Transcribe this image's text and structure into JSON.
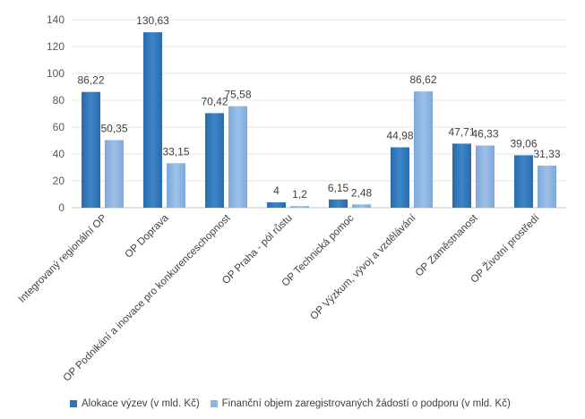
{
  "chart_data": {
    "type": "bar",
    "categories": [
      "Integrovaný regionální OP",
      "OP Doprava",
      "OP Podnikání a inovace pro konkurenceschopnost",
      "OP Praha - pól růstu",
      "OP Technická pomoc",
      "OP Výzkum, vývoj a vzdělávání",
      "OP Zaměstnanost",
      "OP Životní prostředí"
    ],
    "series": [
      {
        "name": "Alokace výzev (v mld. Kč)",
        "values": [
          86.22,
          130.63,
          70.42,
          4,
          6.15,
          44.98,
          47.71,
          39.06
        ],
        "labels": [
          "86,22",
          "130,63",
          "70,42",
          "4",
          "6,15",
          "44,98",
          "47,71",
          "39,06"
        ],
        "color": "#2e75b6"
      },
      {
        "name": "Finanční objem zaregistrovaných žádostí o podporu (v mld. Kč)",
        "values": [
          50.35,
          33.15,
          75.58,
          1.2,
          2.48,
          86.62,
          46.33,
          31.33
        ],
        "labels": [
          "50,35",
          "33,15",
          "75,58",
          "1,2",
          "2,48",
          "86,62",
          "46,33",
          "31,33"
        ],
        "color": "#8db4e2"
      }
    ],
    "yticks": [
      "0",
      "20",
      "40",
      "60",
      "80",
      "100",
      "120",
      "140"
    ],
    "ylim": [
      0,
      140
    ],
    "grid": true,
    "legend_position": "bottom-left"
  }
}
